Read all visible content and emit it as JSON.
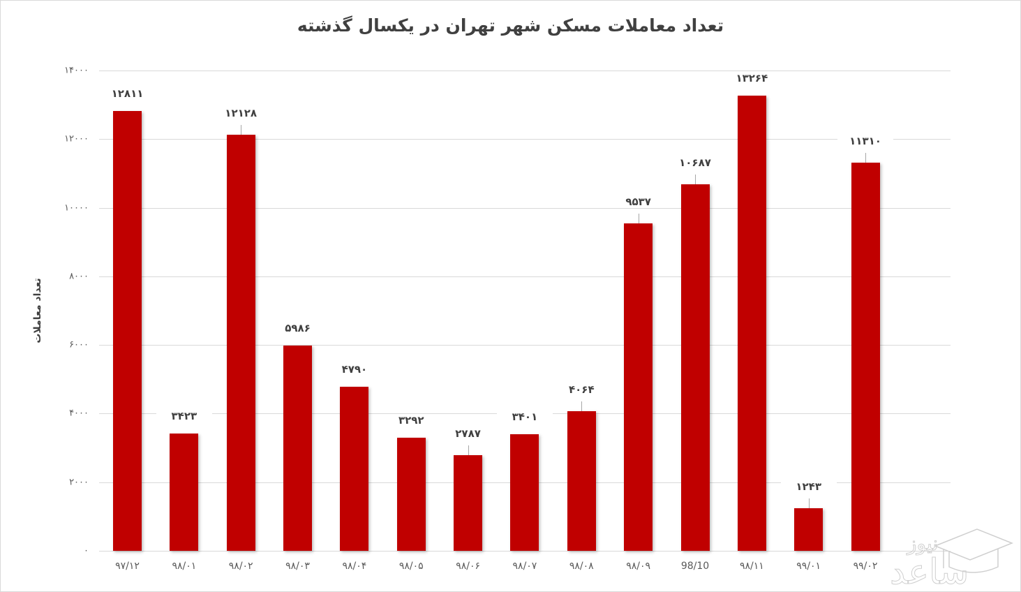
{
  "chart_data": {
    "type": "bar",
    "title": "تعداد معاملات مسکن شهر تهران در یکسال گذشته",
    "xlabel": "",
    "ylabel": "تعداد معاملات",
    "ylim": [
      0,
      14000
    ],
    "grid": true,
    "legend": null,
    "bar_color": "#c00000",
    "categories": [
      "97/12",
      "98/01",
      "98/02",
      "98/03",
      "98/04",
      "98/05",
      "98/06",
      "98/07",
      "98/08",
      "98/09",
      "98/10",
      "98/11",
      "99/01",
      "99/02"
    ],
    "category_labels_displayed": [
      "۹۷/۱۲",
      "۹۸/۰۱",
      "۹۸/۰۲",
      "۹۸/۰۳",
      "۹۸/۰۴",
      "۹۸/۰۵",
      "۹۸/۰۶",
      "۹۸/۰۷",
      "۹۸/۰۸",
      "۹۸/۰۹",
      "98/10",
      "۹۸/۱۱",
      "۹۹/۰۱",
      "۹۹/۰۲"
    ],
    "values": [
      12811,
      3423,
      12128,
      5986,
      4790,
      3292,
      2787,
      3401,
      4064,
      9537,
      10687,
      13264,
      1243,
      11310
    ],
    "value_labels_displayed": [
      "۱۲۸۱۱",
      "۳۴۲۳",
      "۱۲۱۲۸",
      "۵۹۸۶",
      "۴۷۹۰",
      "۳۲۹۲",
      "۲۷۸۷",
      "۳۴۰۱",
      "۴۰۶۴",
      "۹۵۳۷",
      "۱۰۶۸۷",
      "۱۳۲۶۴",
      "۱۲۴۳",
      "۱۱۳۱۰"
    ],
    "yticks": [
      0,
      2000,
      4000,
      6000,
      8000,
      10000,
      12000,
      14000
    ],
    "ytick_labels_displayed": [
      "۰",
      "۲۰۰۰",
      "۴۰۰۰",
      "۶۰۰۰",
      "۸۰۰۰",
      "۱۰۰۰۰",
      "۱۲۰۰۰",
      "۱۴۰۰۰"
    ]
  },
  "watermark": {
    "text_top": "نیوز",
    "text_main": "ساعد",
    "icon": "graduation-cap-icon"
  }
}
